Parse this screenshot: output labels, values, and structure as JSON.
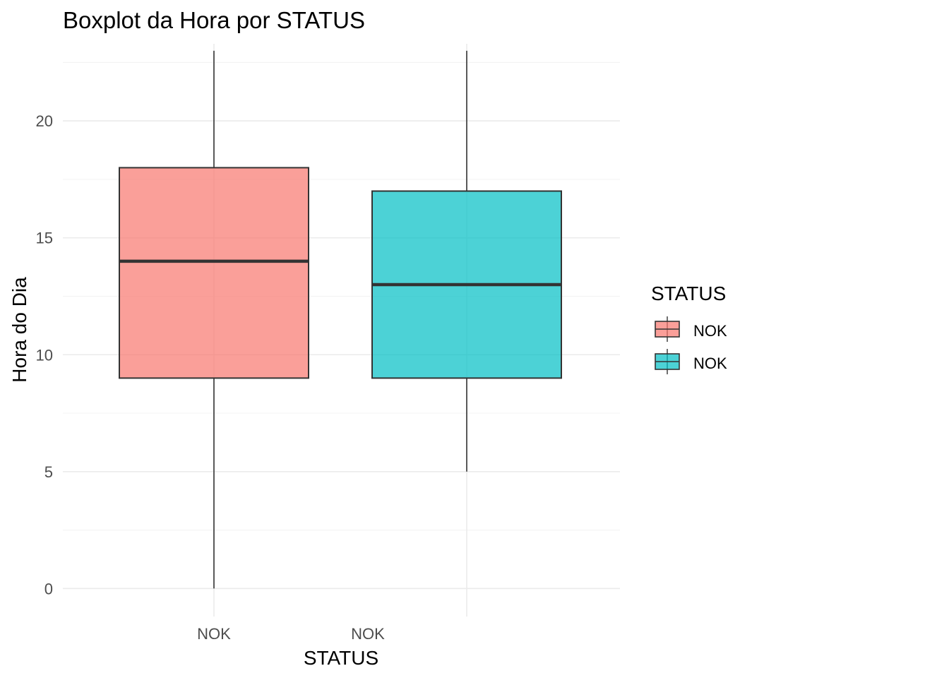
{
  "chart_data": {
    "type": "boxplot",
    "title": "Boxplot da Hora por STATUS",
    "xlabel": "STATUS",
    "ylabel": "Hora do Dia",
    "x_tick_labels": [
      "NOK",
      "NOK"
    ],
    "ylim": [
      -1.2,
      23.3
    ],
    "y_ticks": [
      0,
      5,
      10,
      15,
      20
    ],
    "grid": true,
    "legend": {
      "title": "STATUS",
      "position": "right",
      "entries": [
        "NOK",
        "NOK"
      ]
    },
    "series": [
      {
        "label": "NOK",
        "color": "#F8766D",
        "min": 0,
        "q1": 9,
        "median": 14,
        "q3": 18,
        "max": 23
      },
      {
        "label": "NOK",
        "color": "#00BFC4",
        "min": 5,
        "q1": 9,
        "median": 13,
        "q3": 17,
        "max": 23
      }
    ]
  }
}
